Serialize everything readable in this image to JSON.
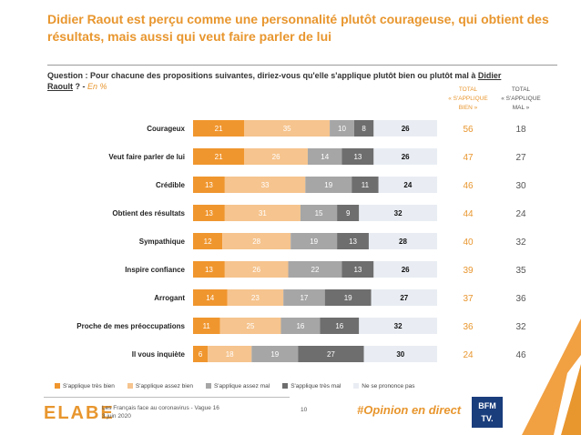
{
  "title": "Didier Raout est perçu comme une personnalité plutôt courageuse, qui obtient des résultats, mais aussi qui veut faire parler de lui",
  "question": {
    "prefix": "Question : Pour chacune des propositions suivantes, diriez-vous qu'elle s'applique plutôt bien ou plutôt mal à ",
    "name_part1": "Didier",
    "name_part2": "Raoult",
    "suffix": " ? - ",
    "unit": "En %"
  },
  "headers": {
    "bien_line1": "TOTAL",
    "bien_line2": "« S'APPLIQUE",
    "bien_line3": "BIEN »",
    "mal_line1": "TOTAL",
    "mal_line2": "« S'APPLIQUE",
    "mal_line3": "MAL »"
  },
  "colors": {
    "tres_bien": "#F0962E",
    "assez_bien": "#F6C48E",
    "assez_mal": "#A6A6A6",
    "tres_mal": "#6E6E6E",
    "nsp": "#E9EDF3",
    "accent": "#E8962E"
  },
  "chart_data": {
    "type": "bar",
    "orientation": "horizontal",
    "stacked": true,
    "unit": "%",
    "categories": [
      "Courageux",
      "Veut faire parler de lui",
      "Crédible",
      "Obtient des résultats",
      "Sympathique",
      "Inspire confiance",
      "Arrogant",
      "Proche de mes préoccupations",
      "Il vous inquiète"
    ],
    "series": [
      {
        "name": "S'applique très bien",
        "values": [
          21,
          21,
          13,
          13,
          12,
          13,
          14,
          11,
          6
        ]
      },
      {
        "name": "S'applique assez bien",
        "values": [
          35,
          26,
          33,
          31,
          28,
          26,
          23,
          25,
          18
        ]
      },
      {
        "name": "S'applique assez mal",
        "values": [
          10,
          14,
          19,
          15,
          19,
          22,
          17,
          16,
          19
        ]
      },
      {
        "name": "S'applique très mal",
        "values": [
          8,
          13,
          11,
          9,
          13,
          13,
          19,
          16,
          27
        ]
      },
      {
        "name": "Ne se prononce pas",
        "values": [
          26,
          26,
          24,
          32,
          28,
          26,
          27,
          32,
          30
        ]
      }
    ],
    "total_bien": [
      56,
      47,
      46,
      44,
      40,
      39,
      37,
      36,
      24
    ],
    "total_mal": [
      18,
      27,
      30,
      24,
      32,
      35,
      36,
      32,
      46
    ],
    "legend_position": "bottom"
  },
  "footer": {
    "logo": "ELABE",
    "source_line1": "Les Français face au coronavirus - Vague 16",
    "source_line2": "3 juin 2020",
    "page": "10",
    "hashtag": "#Opinion en direct",
    "partner_line1": "BFM",
    "partner_line2": "TV."
  }
}
